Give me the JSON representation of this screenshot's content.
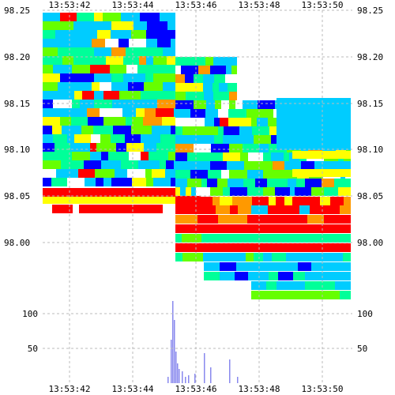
{
  "chart_data": [
    {
      "type": "heatmap",
      "title": "",
      "xlabel": "",
      "ylabel": "",
      "x_ticks": [
        "13:53:42",
        "13:53:44",
        "13:53:46",
        "13:53:48",
        "13:53:50"
      ],
      "y_ticks": [
        "98.25",
        "98.20",
        "98.15",
        "98.10",
        "98.05",
        "98.00"
      ],
      "ylim": [
        97.94,
        98.25
      ],
      "grid": true,
      "color_scale": [
        "#0000ff",
        "#00ccff",
        "#00ff99",
        "#66ff00",
        "#ffff00",
        "#ff9900",
        "#ff0000"
      ],
      "notes": "price ladder heatmap; color = resting volume intensity (blue low → red high)"
    },
    {
      "type": "bar",
      "title": "",
      "xlabel": "",
      "ylabel": "",
      "y_ticks": [
        "100",
        "50"
      ],
      "ylim": [
        0,
        125
      ],
      "grid": true,
      "bar_color": "#8888ee",
      "notes": "traded volume spikes at ~13:53:45.2 (up to ~128)"
    }
  ]
}
